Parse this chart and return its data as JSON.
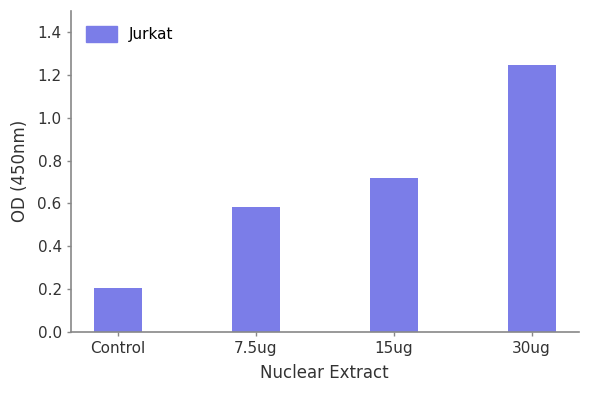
{
  "categories": [
    "Control",
    "7.5ug",
    "15ug",
    "30ug"
  ],
  "values": [
    0.205,
    0.585,
    0.72,
    1.25
  ],
  "bar_color": "#7b7de8",
  "bar_edge_color": "none",
  "xlabel": "Nuclear Extract",
  "ylabel": "OD (450nm)",
  "ylim": [
    0,
    1.5
  ],
  "yticks": [
    0.0,
    0.2,
    0.4,
    0.6,
    0.8,
    1.0,
    1.2,
    1.4
  ],
  "legend_label": "Jurkat",
  "legend_color": "#7b7de8",
  "bar_width": 0.35,
  "background_color": "#ffffff",
  "spine_color": "#888888",
  "label_fontsize": 12,
  "tick_fontsize": 11,
  "legend_fontsize": 11
}
